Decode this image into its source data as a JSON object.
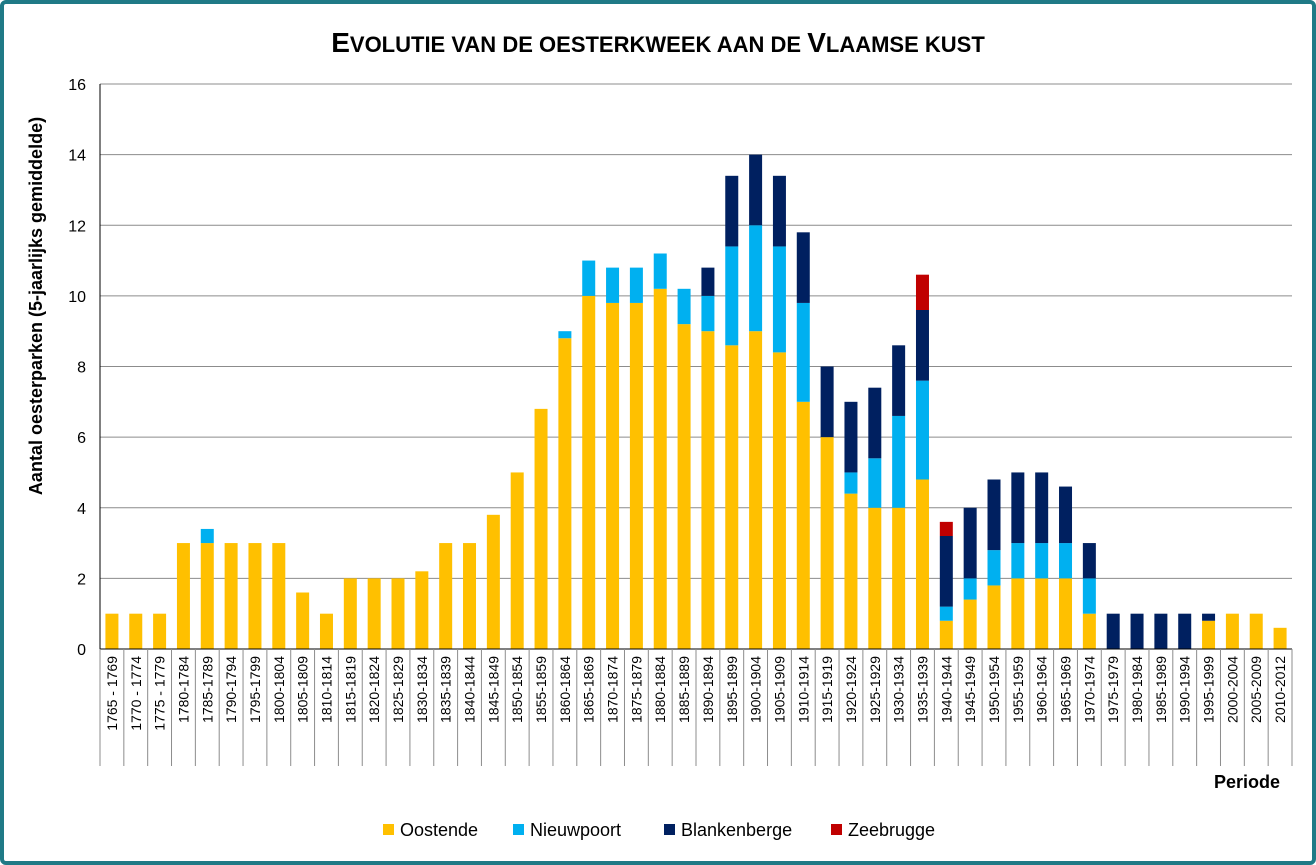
{
  "chart_data": {
    "type": "bar",
    "stacked": true,
    "title": "Evolutie van de oesterkweek aan de Vlaamse kust",
    "xlabel": "Periode",
    "ylabel": "Aantal oesterparken (5-jaarlijks gemiddelde)",
    "ylim": [
      0,
      16
    ],
    "yticks": [
      0,
      2,
      4,
      6,
      8,
      10,
      12,
      14,
      16
    ],
    "grid": true,
    "legend_position": "bottom",
    "categories": [
      "1765 - 1769",
      "1770 - 1774",
      "1775 - 1779",
      "1780-1784",
      "1785-1789",
      "1790-1794",
      "1795-1799",
      "1800-1804",
      "1805-1809",
      "1810-1814",
      "1815-1819",
      "1820-1824",
      "1825-1829",
      "1830-1834",
      "1835-1839",
      "1840-1844",
      "1845-1849",
      "1850-1854",
      "1855-1859",
      "1860-1864",
      "1865-1869",
      "1870-1874",
      "1875-1879",
      "1880-1884",
      "1885-1889",
      "1890-1894",
      "1895-1899",
      "1900-1904",
      "1905-1909",
      "1910-1914",
      "1915-1919",
      "1920-1924",
      "1925-1929",
      "1930-1934",
      "1935-1939",
      "1940-1944",
      "1945-1949",
      "1950-1954",
      "1955-1959",
      "1960-1964",
      "1965-1969",
      "1970-1974",
      "1975-1979",
      "1980-1984",
      "1985-1989",
      "1990-1994",
      "1995-1999",
      "2000-2004",
      "2005-2009",
      "2010-2012"
    ],
    "series": [
      {
        "name": "Oostende",
        "color": "#ffc000",
        "values": [
          1,
          1,
          1,
          3,
          3,
          3,
          3,
          3,
          1.6,
          1,
          2,
          2,
          2,
          2.2,
          3,
          3,
          3.8,
          5,
          6.8,
          8.8,
          10,
          9.8,
          9.8,
          10.2,
          9.2,
          9,
          8.6,
          9,
          8.4,
          7,
          6,
          4.4,
          4,
          4,
          4.8,
          0.8,
          1.4,
          1.8,
          2,
          2,
          2,
          1,
          0,
          0,
          0,
          0,
          0.8,
          1,
          1,
          0.6
        ]
      },
      {
        "name": "Nieuwpoort",
        "color": "#00b0f0",
        "values": [
          0,
          0,
          0,
          0,
          0.4,
          0,
          0,
          0,
          0,
          0,
          0,
          0,
          0,
          0,
          0,
          0,
          0,
          0,
          0,
          0.2,
          1,
          1,
          1,
          1,
          1,
          1,
          2.8,
          3,
          3,
          2.8,
          0,
          0.6,
          1.4,
          2.6,
          2.8,
          0.4,
          0.6,
          1,
          1,
          1,
          1,
          1,
          0,
          0,
          0,
          0,
          0,
          0,
          0,
          0
        ]
      },
      {
        "name": "Blankenberge",
        "color": "#002060",
        "values": [
          0,
          0,
          0,
          0,
          0,
          0,
          0,
          0,
          0,
          0,
          0,
          0,
          0,
          0,
          0,
          0,
          0,
          0,
          0,
          0,
          0,
          0,
          0,
          0,
          0,
          0.8,
          2,
          2,
          2,
          2,
          2,
          2,
          2,
          2,
          2,
          2,
          2,
          2,
          2,
          2,
          1.6,
          1,
          1,
          1,
          1,
          1,
          0.2,
          0,
          0,
          0
        ]
      },
      {
        "name": "Zeebrugge",
        "color": "#c00000",
        "values": [
          0,
          0,
          0,
          0,
          0,
          0,
          0,
          0,
          0,
          0,
          0,
          0,
          0,
          0,
          0,
          0,
          0,
          0,
          0,
          0,
          0,
          0,
          0,
          0,
          0,
          0,
          0,
          0,
          0,
          0,
          0,
          0,
          0,
          0,
          1,
          0.4,
          0,
          0,
          0,
          0,
          0,
          0,
          0,
          0,
          0,
          0,
          0,
          0,
          0,
          0
        ]
      }
    ]
  }
}
